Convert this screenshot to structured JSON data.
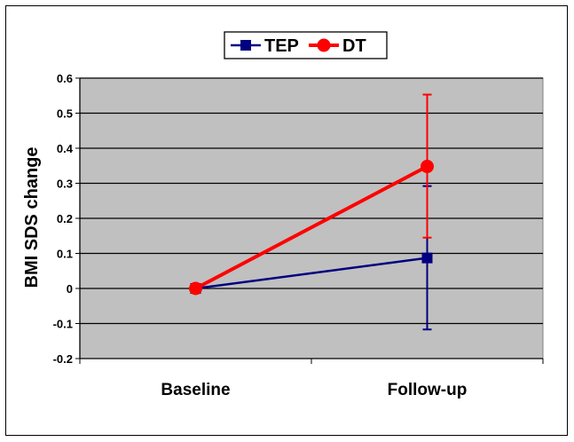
{
  "chart_data": {
    "type": "line",
    "title": "",
    "xlabel": "",
    "ylabel": "BMI SDS change",
    "categories": [
      "Baseline",
      "Follow-up"
    ],
    "ylim": [
      -0.2,
      0.6
    ],
    "yticks": [
      "0.6",
      "0.5",
      "0.4",
      "0.3",
      "0.2",
      "0.1",
      "0",
      "-0.1",
      "-0.2"
    ],
    "grid": true,
    "legend": "top-center",
    "plot_background": "#c0c0c0",
    "series": [
      {
        "name": "TEP",
        "color": "#000080",
        "marker": "square",
        "values": [
          0,
          0.087
        ],
        "error_low": [
          null,
          -0.117
        ],
        "error_high": [
          null,
          0.292
        ]
      },
      {
        "name": "DT",
        "color": "#ff0000",
        "marker": "circle",
        "values": [
          0,
          0.348
        ],
        "error_low": [
          null,
          0.145
        ],
        "error_high": [
          null,
          0.553
        ]
      }
    ]
  }
}
